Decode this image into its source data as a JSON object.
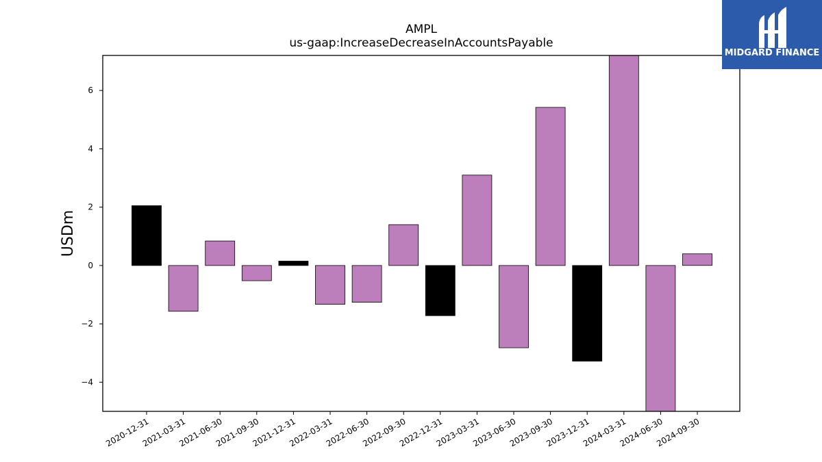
{
  "chart_data": {
    "type": "bar",
    "title": "AMPL",
    "subtitle": "us-gaap:IncreaseDecreaseInAccountsPayable",
    "xlabel": "",
    "ylabel": "USDm",
    "ylim": [
      -5.0,
      7.2
    ],
    "yticks": [
      -4,
      -2,
      0,
      2,
      4,
      6
    ],
    "ytick_labels": [
      "−4",
      "−2",
      "0",
      "2",
      "4",
      "6"
    ],
    "categories": [
      "2020-12-31",
      "2021-03-31",
      "2021-06-30",
      "2021-09-30",
      "2021-12-31",
      "2022-03-31",
      "2022-06-30",
      "2022-09-30",
      "2022-12-31",
      "2023-03-31",
      "2023-06-30",
      "2023-09-30",
      "2023-12-31",
      "2024-03-31",
      "2024-06-30",
      "2024-09-30"
    ],
    "values": [
      2.05,
      -1.57,
      0.84,
      -0.52,
      0.15,
      -1.33,
      -1.26,
      1.4,
      -1.72,
      3.1,
      -2.82,
      5.42,
      -3.28,
      7.5,
      -5.3,
      0.4
    ],
    "bar_colors": [
      "#000000",
      "#bc7fbc",
      "#bc7fbc",
      "#bc7fbc",
      "#000000",
      "#bc7fbc",
      "#bc7fbc",
      "#bc7fbc",
      "#000000",
      "#bc7fbc",
      "#bc7fbc",
      "#bc7fbc",
      "#000000",
      "#bc7fbc",
      "#bc7fbc",
      "#bc7fbc"
    ],
    "grid": false
  },
  "logo": {
    "text": "MIDGARD FINANCE",
    "background": "#2d5bab"
  }
}
